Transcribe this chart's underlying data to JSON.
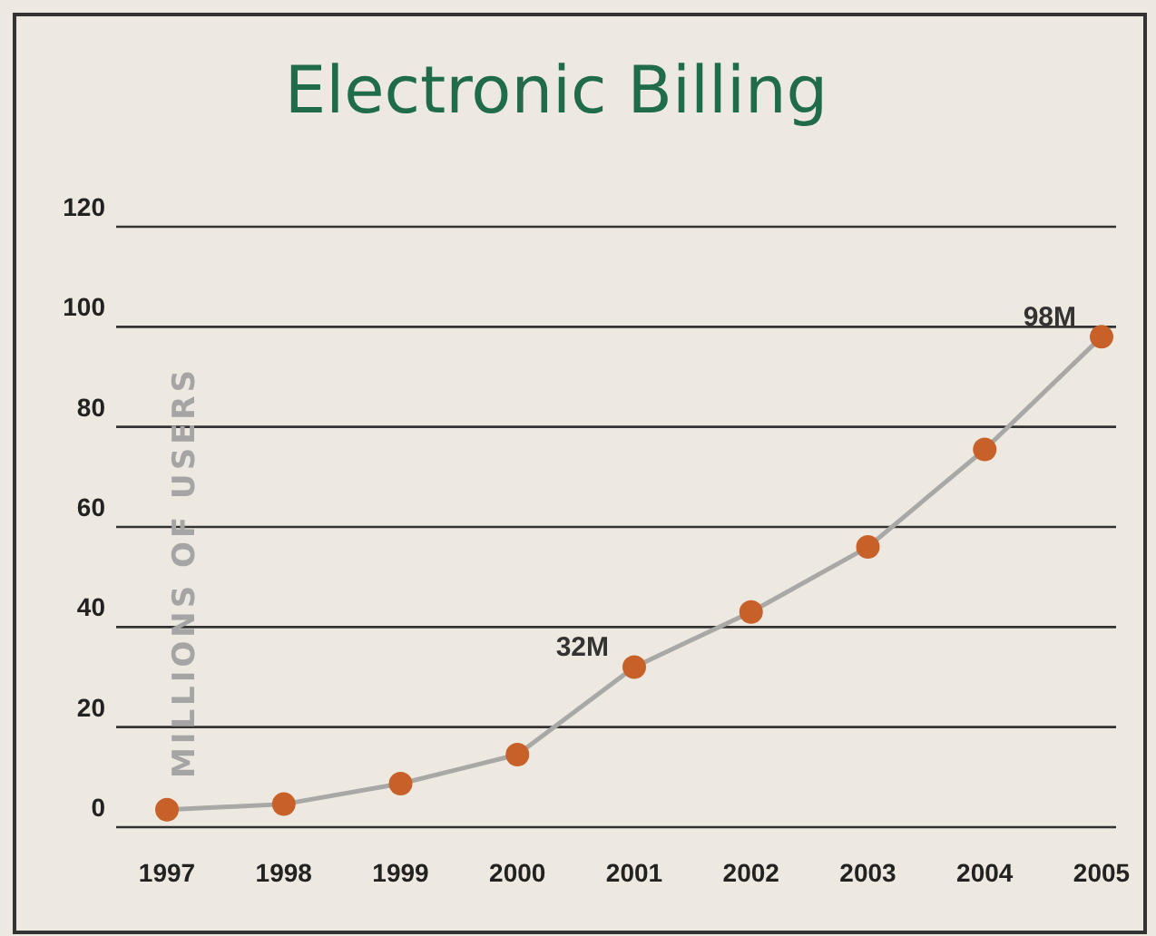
{
  "chart_data": {
    "type": "line",
    "title": "Electronic Billing",
    "ylabel": "MILLIONS OF USERS",
    "categories": [
      "1997",
      "1998",
      "1999",
      "2000",
      "2001",
      "2002",
      "2003",
      "2004",
      "2005"
    ],
    "series": [
      {
        "color": "#c8602a",
        "values": [
          3.5,
          4.6,
          8.7,
          14.5,
          32,
          43,
          56,
          75.5,
          98
        ]
      }
    ],
    "ylim": [
      0,
      120
    ],
    "yticks": [
      0,
      20,
      40,
      60,
      80,
      100,
      120
    ],
    "grid": "y",
    "marker": "circle",
    "line_style": "solid",
    "annotations": [
      {
        "text": "32M",
        "x": "2001",
        "y": 32
      },
      {
        "text": "98M",
        "x": "2005",
        "y": 98
      }
    ]
  }
}
